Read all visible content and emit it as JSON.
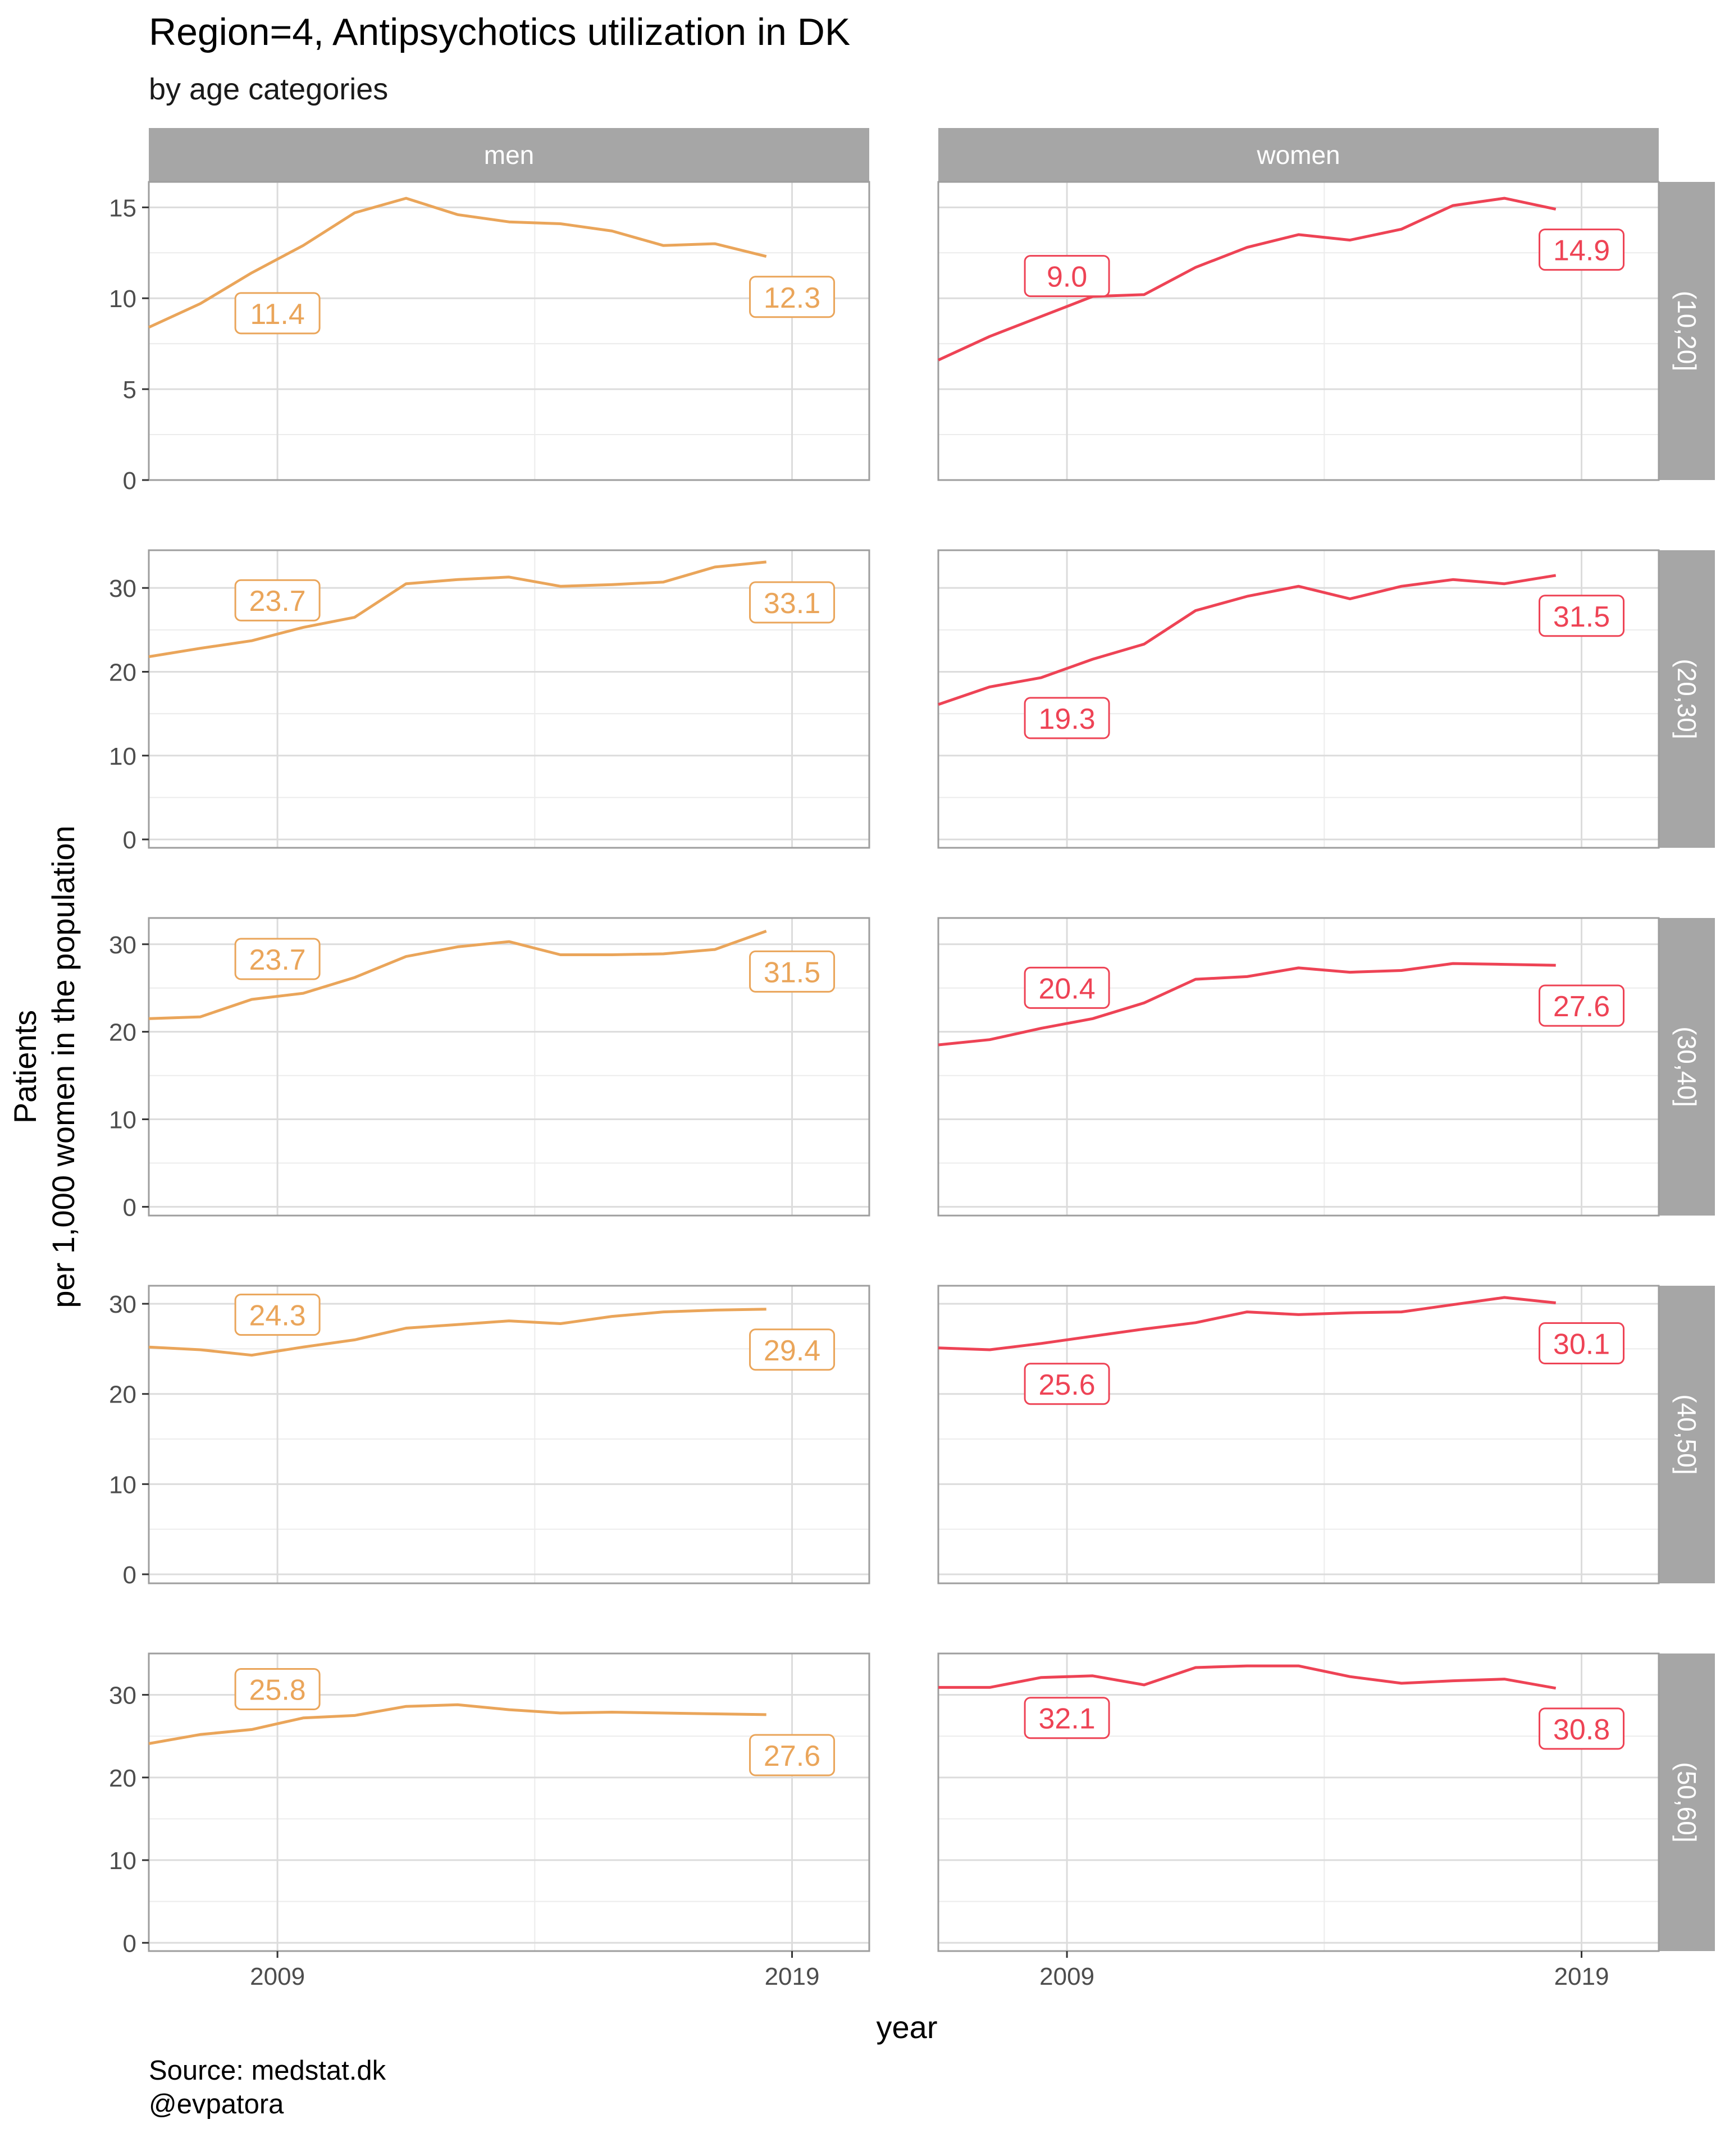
{
  "title": "Region=4, Antipsychotics utilization in DK",
  "subtitle": "by age categories",
  "caption": [
    "Source: medstat.dk",
    "@evpatora"
  ],
  "colors": {
    "men": "#eaa55a",
    "women": "#ee4355",
    "strip": "#a6a6a6",
    "grid": "#dcdcdc",
    "axis_text": "#4d4d4d"
  },
  "chart_data": {
    "type": "line",
    "xlabel": "year",
    "ylabel": [
      "Patients",
      "per 1,000 women in the population"
    ],
    "x_ticks": [
      2009,
      2019
    ],
    "x": [
      2006.5,
      2007.5,
      2008.5,
      2009.5,
      2010.5,
      2011.5,
      2012.5,
      2013.5,
      2014.5,
      2015.5,
      2016.5,
      2017.5,
      2018.5,
      2019.5,
      2020.5
    ],
    "xlim": [
      2006.5,
      2020.5
    ],
    "columns": [
      "men",
      "women"
    ],
    "rows": [
      {
        "label": "(10,20]",
        "ylim": [
          0,
          16.4
        ],
        "y_ticks": [
          0,
          5,
          10,
          15
        ],
        "series": [
          {
            "column": "men",
            "values": [
              8.4,
              9.7,
              11.4,
              12.9,
              14.7,
              15.5,
              14.6,
              14.2,
              14.1,
              13.7,
              12.9,
              13.0,
              12.3,
              null,
              null
            ],
            "labels": [
              {
                "x": 2009,
                "y": 11.4,
                "text": "11.4",
                "pos": "below"
              },
              {
                "x": 2019,
                "y": 12.3,
                "text": "12.3",
                "pos": "below"
              }
            ]
          },
          {
            "column": "women",
            "values": [
              6.6,
              7.9,
              9.0,
              10.1,
              10.2,
              11.7,
              12.8,
              13.5,
              13.2,
              13.8,
              15.1,
              15.5,
              14.9,
              null,
              null
            ],
            "labels": [
              {
                "x": 2009,
                "y": 9.0,
                "text": "9.0",
                "pos": "above"
              },
              {
                "x": 2019,
                "y": 14.9,
                "text": "14.9",
                "pos": "below"
              }
            ]
          }
        ]
      },
      {
        "label": "(20,30]",
        "ylim": [
          -1,
          34.5
        ],
        "y_ticks": [
          0,
          10,
          20,
          30
        ],
        "series": [
          {
            "column": "men",
            "values": [
              21.8,
              22.8,
              23.7,
              25.3,
              26.5,
              30.5,
              31.0,
              31.3,
              30.2,
              30.4,
              30.7,
              32.5,
              33.1,
              null,
              null
            ],
            "labels": [
              {
                "x": 2009,
                "y": 23.7,
                "text": "23.7",
                "pos": "above"
              },
              {
                "x": 2019,
                "y": 33.1,
                "text": "33.1",
                "pos": "below"
              }
            ]
          },
          {
            "column": "women",
            "values": [
              16.1,
              18.2,
              19.3,
              21.5,
              23.3,
              27.3,
              29.0,
              30.2,
              28.7,
              30.2,
              31.0,
              30.5,
              31.5,
              null,
              null
            ],
            "labels": [
              {
                "x": 2009,
                "y": 19.3,
                "text": "19.3",
                "pos": "below"
              },
              {
                "x": 2019,
                "y": 31.5,
                "text": "31.5",
                "pos": "below"
              }
            ]
          }
        ]
      },
      {
        "label": "(30,40]",
        "ylim": [
          -1,
          33
        ],
        "y_ticks": [
          0,
          10,
          20,
          30
        ],
        "series": [
          {
            "column": "men",
            "values": [
              21.5,
              21.7,
              23.7,
              24.4,
              26.2,
              28.6,
              29.7,
              30.3,
              28.8,
              28.8,
              28.9,
              29.4,
              31.5,
              null,
              null
            ],
            "labels": [
              {
                "x": 2009,
                "y": 23.7,
                "text": "23.7",
                "pos": "above"
              },
              {
                "x": 2019,
                "y": 31.5,
                "text": "31.5",
                "pos": "below"
              }
            ]
          },
          {
            "column": "women",
            "values": [
              18.5,
              19.1,
              20.4,
              21.5,
              23.3,
              26.0,
              26.3,
              27.3,
              26.8,
              27.0,
              27.8,
              27.7,
              27.6,
              null,
              null
            ],
            "labels": [
              {
                "x": 2009,
                "y": 20.4,
                "text": "20.4",
                "pos": "above"
              },
              {
                "x": 2019,
                "y": 27.6,
                "text": "27.6",
                "pos": "below"
              }
            ]
          }
        ]
      },
      {
        "label": "(40,50]",
        "ylim": [
          -1,
          32
        ],
        "y_ticks": [
          0,
          10,
          20,
          30
        ],
        "series": [
          {
            "column": "men",
            "values": [
              25.2,
              24.9,
              24.3,
              25.2,
              26.0,
              27.3,
              27.7,
              28.1,
              27.8,
              28.6,
              29.1,
              29.3,
              29.4,
              null,
              null
            ],
            "labels": [
              {
                "x": 2009,
                "y": 24.3,
                "text": "24.3",
                "pos": "above"
              },
              {
                "x": 2019,
                "y": 29.4,
                "text": "29.4",
                "pos": "below"
              }
            ]
          },
          {
            "column": "women",
            "values": [
              25.1,
              24.9,
              25.6,
              26.4,
              27.2,
              27.9,
              29.1,
              28.8,
              29.0,
              29.1,
              29.9,
              30.7,
              30.1,
              null,
              null
            ],
            "labels": [
              {
                "x": 2009,
                "y": 25.6,
                "text": "25.6",
                "pos": "below"
              },
              {
                "x": 2019,
                "y": 30.1,
                "text": "30.1",
                "pos": "below"
              }
            ]
          }
        ]
      },
      {
        "label": "(50,60]",
        "ylim": [
          -1,
          35
        ],
        "y_ticks": [
          0,
          10,
          20,
          30
        ],
        "series": [
          {
            "column": "men",
            "values": [
              24.1,
              25.2,
              25.8,
              27.2,
              27.5,
              28.6,
              28.8,
              28.2,
              27.8,
              27.9,
              27.8,
              27.7,
              27.6,
              null,
              null
            ],
            "labels": [
              {
                "x": 2009,
                "y": 25.8,
                "text": "25.8",
                "pos": "above"
              },
              {
                "x": 2019,
                "y": 27.6,
                "text": "27.6",
                "pos": "below"
              }
            ]
          },
          {
            "column": "women",
            "values": [
              30.9,
              30.9,
              32.1,
              32.3,
              31.2,
              33.3,
              33.5,
              33.5,
              32.2,
              31.4,
              31.7,
              31.9,
              30.8,
              null,
              null
            ],
            "labels": [
              {
                "x": 2009,
                "y": 32.1,
                "text": "32.1",
                "pos": "below"
              },
              {
                "x": 2019,
                "y": 30.8,
                "text": "30.8",
                "pos": "below"
              }
            ]
          }
        ]
      }
    ]
  }
}
